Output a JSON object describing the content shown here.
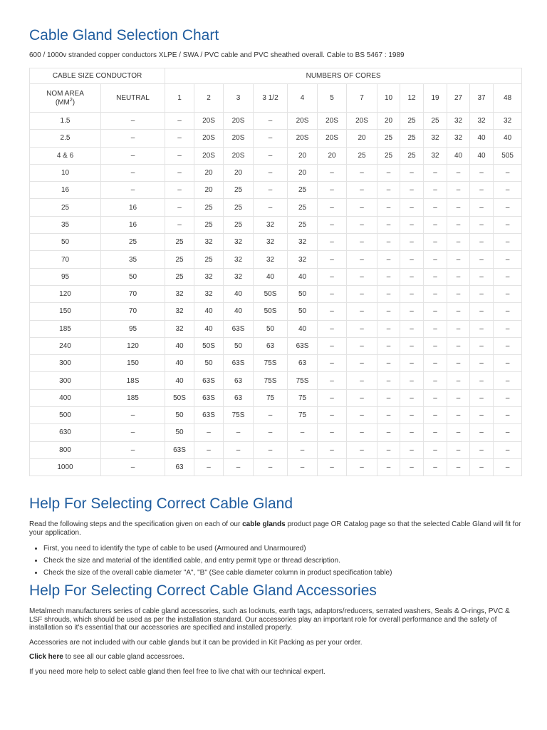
{
  "header": {
    "title": "Cable Gland Selection Chart",
    "subtitle": "600 / 1000v stranded copper conductors XLPE / SWA / PVC cable and PVC sheathed overall. Cable to BS 5467 : 1989"
  },
  "table": {
    "group_headers": [
      "CABLE SIZE CONDUCTOR",
      "NUMBERS OF CORES"
    ],
    "nom_area": {
      "label": "NOM AREA",
      "unit": "(MM",
      "sup": "2",
      "close": ")"
    },
    "neutral": "NEUTRAL",
    "cores": [
      "1",
      "2",
      "3",
      "3 1/2",
      "4",
      "5",
      "7",
      "10",
      "12",
      "19",
      "27",
      "37",
      "48"
    ],
    "rows": [
      [
        "1.5",
        "–",
        "–",
        "20S",
        "20S",
        "–",
        "20S",
        "20S",
        "20S",
        "20",
        "25",
        "25",
        "32",
        "32",
        "32"
      ],
      [
        "2.5",
        "–",
        "–",
        "20S",
        "20S",
        "–",
        "20S",
        "20S",
        "20",
        "25",
        "25",
        "32",
        "32",
        "40",
        "40"
      ],
      [
        "4 & 6",
        "–",
        "–",
        "20S",
        "20S",
        "–",
        "20",
        "20",
        "25",
        "25",
        "25",
        "32",
        "40",
        "40",
        "505"
      ],
      [
        "10",
        "–",
        "–",
        "20",
        "20",
        "–",
        "20",
        "–",
        "–",
        "–",
        "–",
        "–",
        "–",
        "–",
        "–"
      ],
      [
        "16",
        "–",
        "–",
        "20",
        "25",
        "–",
        "25",
        "–",
        "–",
        "–",
        "–",
        "–",
        "–",
        "–",
        "–"
      ],
      [
        "25",
        "16",
        "–",
        "25",
        "25",
        "–",
        "25",
        "–",
        "–",
        "–",
        "–",
        "–",
        "–",
        "–",
        "–"
      ],
      [
        "35",
        "16",
        "–",
        "25",
        "25",
        "32",
        "25",
        "–",
        "–",
        "–",
        "–",
        "–",
        "–",
        "–",
        "–"
      ],
      [
        "50",
        "25",
        "25",
        "32",
        "32",
        "32",
        "32",
        "–",
        "–",
        "–",
        "–",
        "–",
        "–",
        "–",
        "–"
      ],
      [
        "70",
        "35",
        "25",
        "25",
        "32",
        "32",
        "32",
        "–",
        "–",
        "–",
        "–",
        "–",
        "–",
        "–",
        "–"
      ],
      [
        "95",
        "50",
        "25",
        "32",
        "32",
        "40",
        "40",
        "–",
        "–",
        "–",
        "–",
        "–",
        "–",
        "–",
        "–"
      ],
      [
        "120",
        "70",
        "32",
        "32",
        "40",
        "50S",
        "50",
        "–",
        "–",
        "–",
        "–",
        "–",
        "–",
        "–",
        "–"
      ],
      [
        "150",
        "70",
        "32",
        "40",
        "40",
        "50S",
        "50",
        "–",
        "–",
        "–",
        "–",
        "–",
        "–",
        "–",
        "–"
      ],
      [
        "185",
        "95",
        "32",
        "40",
        "63S",
        "50",
        "40",
        "–",
        "–",
        "–",
        "–",
        "–",
        "–",
        "–",
        "–"
      ],
      [
        "240",
        "120",
        "40",
        "50S",
        "50",
        "63",
        "63S",
        "–",
        "–",
        "–",
        "–",
        "–",
        "–",
        "–",
        "–"
      ],
      [
        "300",
        "150",
        "40",
        "50",
        "63S",
        "75S",
        "63",
        "–",
        "–",
        "–",
        "–",
        "–",
        "–",
        "–",
        "–"
      ],
      [
        "300",
        "18S",
        "40",
        "63S",
        "63",
        "75S",
        "75S",
        "–",
        "–",
        "–",
        "–",
        "–",
        "–",
        "–",
        "–"
      ],
      [
        "400",
        "185",
        "50S",
        "63S",
        "63",
        "75",
        "75",
        "–",
        "–",
        "–",
        "–",
        "–",
        "–",
        "–",
        "–"
      ],
      [
        "500",
        "–",
        "50",
        "63S",
        "75S",
        "–",
        "75",
        "–",
        "–",
        "–",
        "–",
        "–",
        "–",
        "–",
        "–"
      ],
      [
        "630",
        "–",
        "50",
        "–",
        "–",
        "–",
        "–",
        "–",
        "–",
        "–",
        "–",
        "–",
        "–",
        "–",
        "–"
      ],
      [
        "800",
        "–",
        "63S",
        "–",
        "–",
        "–",
        "–",
        "–",
        "–",
        "–",
        "–",
        "–",
        "–",
        "–",
        "–"
      ],
      [
        "1000",
        "–",
        "63",
        "–",
        "–",
        "–",
        "–",
        "–",
        "–",
        "–",
        "–",
        "–",
        "–",
        "–",
        "–"
      ]
    ]
  },
  "gland_help": {
    "heading": "Help For Selecting Correct Cable Gland",
    "intro": {
      "before": "Read the following steps and the specification given on each of our ",
      "bold": "cable glands",
      "after": " product page OR Catalog page so that the selected Cable Gland will fit for your application."
    },
    "steps": [
      "First, you need to identify the type of cable to be used (Armoured and Unarmoured)",
      "Check the size and material of the identified cable, and entry permit type or thread description.",
      "Check the size of the overall cable diameter \"A\", \"B\" (See cable diameter column in product specification table)"
    ]
  },
  "accessories_help": {
    "heading": "Help For Selecting Correct Cable Gland Accessories",
    "paragraph": "Metalmech manufacturers series of cable gland accessories, such as locknuts, earth tags, adaptors/reducers, serrated washers, Seals & O-rings, PVC & LSF shrouds, which should be used as per the installation standard. Our accessories play an important role for overall performance and the safety of installation so it's essential that our accessories are specified and installed properly.",
    "packing": "Accessories are not included with our cable glands but it can be provided in Kit Packing as per your order.",
    "link": {
      "bold": "Click here",
      "after": " to see all our cable gland accessroes."
    },
    "chat": "If you need more help to select cable gland then feel free to live chat with our technical expert."
  }
}
